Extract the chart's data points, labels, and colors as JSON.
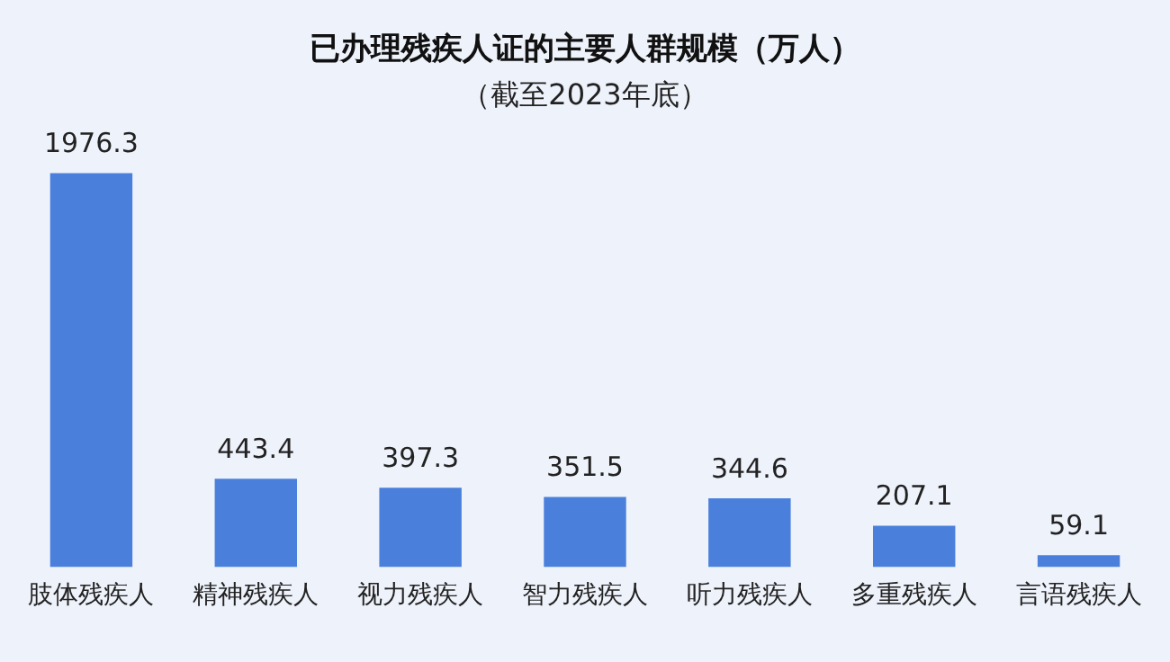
{
  "chart_data": {
    "type": "bar",
    "title": "已办理残疾人证的主要人群规模（万人）",
    "subtitle": "（截至2023年底）",
    "categories": [
      "肢体残疾人",
      "精神残疾人",
      "视力残疾人",
      "智力残疾人",
      "听力残疾人",
      "多重残疾人",
      "言语残疾人"
    ],
    "values": [
      1976.3,
      443.4,
      397.3,
      351.5,
      344.6,
      207.1,
      59.1
    ],
    "color": "#4a80dc",
    "data_labels": true,
    "grid": false,
    "legend": false
  }
}
